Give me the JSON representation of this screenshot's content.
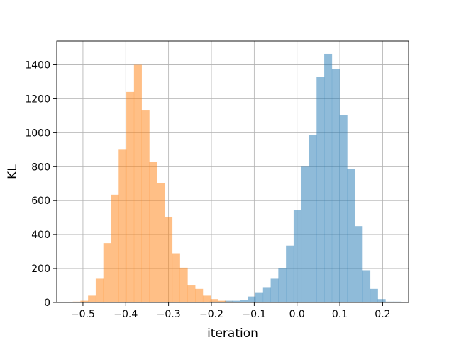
{
  "chart_data": {
    "type": "bar",
    "title": "",
    "xlabel": "iteration",
    "ylabel": "KL",
    "xlim": [
      -0.5612,
      0.2606
    ],
    "ylim": [
      0,
      1540
    ],
    "x_ticks": [
      -0.5,
      -0.4,
      -0.3,
      -0.2,
      -0.1,
      0.0,
      0.1,
      0.2
    ],
    "x_tick_labels": [
      "−0.5",
      "−0.4",
      "−0.3",
      "−0.2",
      "−0.1",
      "0.0",
      "0.1",
      "0.2"
    ],
    "y_ticks": [
      0,
      200,
      400,
      600,
      800,
      1000,
      1200,
      1400
    ],
    "y_tick_labels": [
      "0",
      "200",
      "400",
      "600",
      "800",
      "1000",
      "1200",
      "1400"
    ],
    "grid": true,
    "bin_width": 0.01787,
    "series": [
      {
        "color": "#1f77b4",
        "alpha": 0.5,
        "bin_start": -0.2045,
        "values": [
          5,
          5,
          10,
          10,
          15,
          35,
          60,
          90,
          140,
          200,
          335,
          545,
          800,
          985,
          1330,
          1465,
          1375,
          1105,
          785,
          450,
          190,
          80,
          20,
          5,
          5
        ]
      },
      {
        "color": "#ff7f0e",
        "alpha": 0.5,
        "bin_start": -0.5238,
        "values": [
          5,
          10,
          40,
          140,
          350,
          635,
          900,
          1240,
          1400,
          1135,
          830,
          705,
          505,
          290,
          205,
          100,
          80,
          40,
          20,
          10,
          5
        ]
      }
    ]
  }
}
